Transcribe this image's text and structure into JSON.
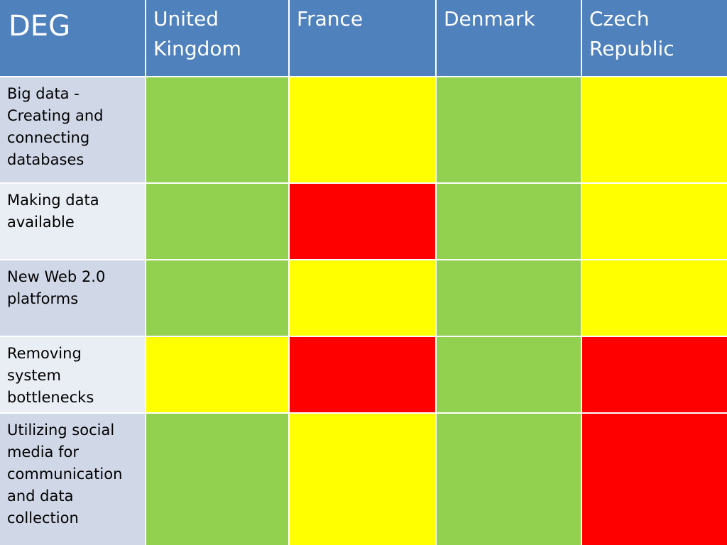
{
  "table": {
    "corner": "DEG",
    "columns": [
      "United Kingdom",
      "France",
      "Denmark",
      "Czech Republic"
    ],
    "rows": [
      {
        "label": "Big data - Creating and connecting databases",
        "colors": [
          "#92d050",
          "#ffff00",
          "#92d050",
          "#ffff00"
        ]
      },
      {
        "label": "Making data available",
        "colors": [
          "#92d050",
          "#ff0000",
          "#92d050",
          "#ffff00"
        ]
      },
      {
        "label": "New Web 2.0 platforms",
        "colors": [
          "#92d050",
          "#ffff00",
          "#92d050",
          "#ffff00"
        ]
      },
      {
        "label": "Removing system bottlenecks",
        "colors": [
          "#ffff00",
          "#ff0000",
          "#92d050",
          "#ff0000"
        ]
      },
      {
        "label": "Utilizing social media for communication and data collection",
        "colors": [
          "#92d050",
          "#ffff00",
          "#92d050",
          "#ff0000"
        ]
      }
    ]
  }
}
